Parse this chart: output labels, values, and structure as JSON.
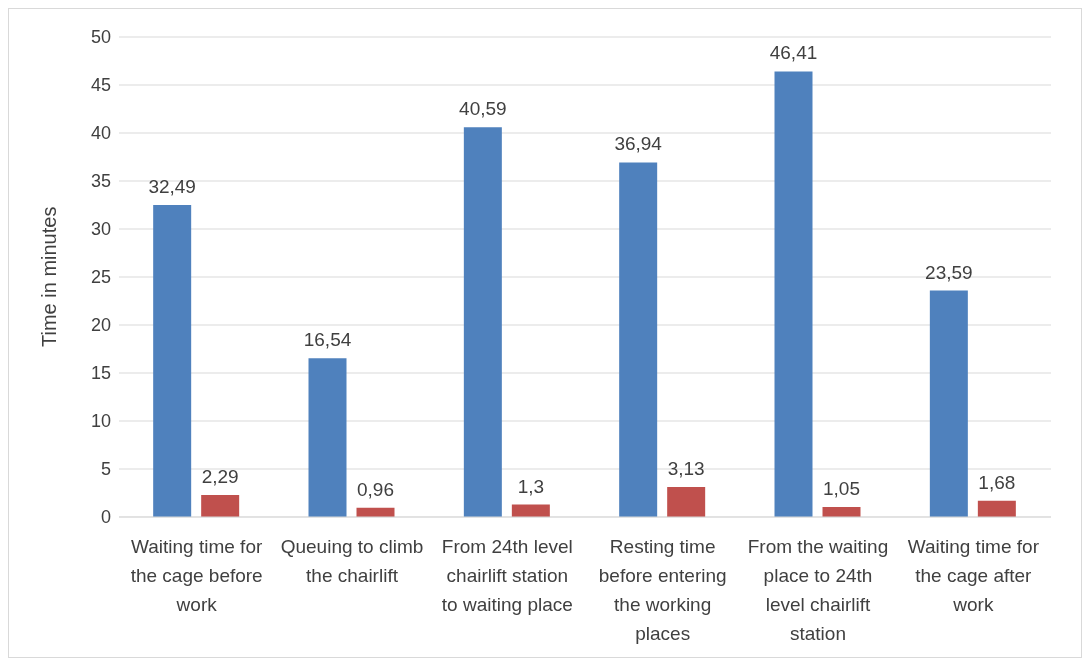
{
  "chart_data": {
    "type": "bar",
    "ylabel": "Time in minutes",
    "categories": [
      "Waiting time for the cage before work",
      "Queuing to climb the chairlift",
      "From 24th level chairlift station to waiting place",
      "Resting time before entering the working places",
      "From the waiting place to 24th level chairlift station",
      "Waiting time for the cage after work"
    ],
    "series": [
      {
        "color": "#4f81bd",
        "values": [
          32.49,
          16.54,
          40.59,
          36.94,
          46.41,
          23.59
        ],
        "value_labels": [
          "32,49",
          "16,54",
          "40,59",
          "36,94",
          "46,41",
          "23,59"
        ]
      },
      {
        "color": "#c0504d",
        "values": [
          2.29,
          0.96,
          1.3,
          3.13,
          1.05,
          1.68
        ],
        "value_labels": [
          "2,29",
          "0,96",
          "1,3",
          "3,13",
          "1,05",
          "1,68"
        ]
      }
    ],
    "ylim": [
      0,
      50
    ],
    "yticks": [
      0,
      5,
      10,
      15,
      20,
      25,
      30,
      35,
      40,
      45,
      50
    ],
    "grid": "y",
    "legend": false
  }
}
